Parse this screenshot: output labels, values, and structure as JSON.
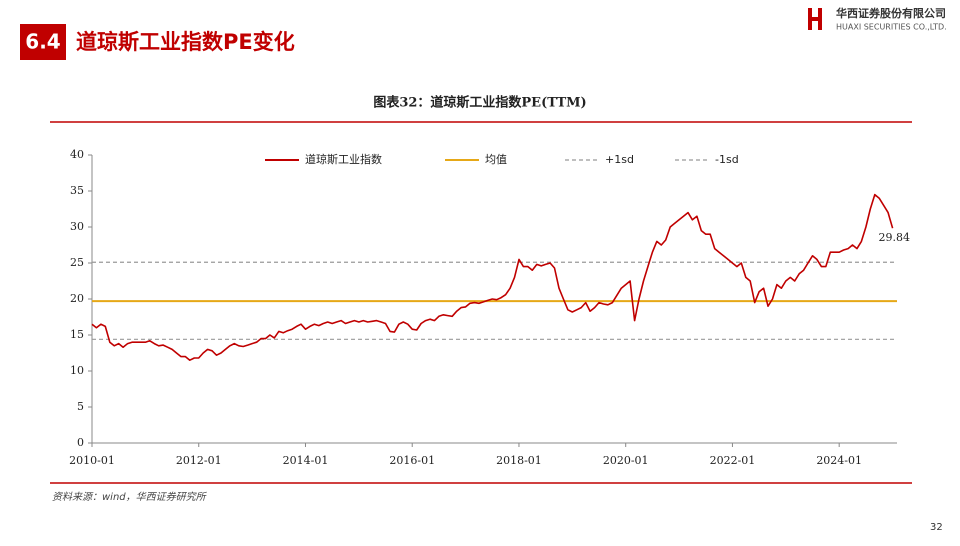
{
  "header": {
    "section": "6.4",
    "title": "道琼斯工业指数PE变化",
    "company_cn": "华西证券股份有限公司",
    "company_en": "HUAXI SECURITIES CO.,LTD."
  },
  "chart_data": {
    "type": "line",
    "title": "图表32：道琼斯工业指数PE(TTM)",
    "x": [
      "2010-01",
      "2010-02",
      "2010-03",
      "2010-04",
      "2010-05",
      "2010-06",
      "2010-07",
      "2010-08",
      "2010-09",
      "2010-10",
      "2010-11",
      "2010-12",
      "2011-01",
      "2011-02",
      "2011-03",
      "2011-04",
      "2011-05",
      "2011-06",
      "2011-07",
      "2011-08",
      "2011-09",
      "2011-10",
      "2011-11",
      "2011-12",
      "2012-01",
      "2012-02",
      "2012-03",
      "2012-04",
      "2012-05",
      "2012-06",
      "2012-07",
      "2012-08",
      "2012-09",
      "2012-10",
      "2012-11",
      "2012-12",
      "2013-01",
      "2013-02",
      "2013-03",
      "2013-04",
      "2013-05",
      "2013-06",
      "2013-07",
      "2013-08",
      "2013-09",
      "2013-10",
      "2013-11",
      "2013-12",
      "2014-01",
      "2014-02",
      "2014-03",
      "2014-04",
      "2014-05",
      "2014-06",
      "2014-07",
      "2014-08",
      "2014-09",
      "2014-10",
      "2014-11",
      "2014-12",
      "2015-01",
      "2015-02",
      "2015-03",
      "2015-04",
      "2015-05",
      "2015-06",
      "2015-07",
      "2015-08",
      "2015-09",
      "2015-10",
      "2015-11",
      "2015-12",
      "2016-01",
      "2016-02",
      "2016-03",
      "2016-04",
      "2016-05",
      "2016-06",
      "2016-07",
      "2016-08",
      "2016-09",
      "2016-10",
      "2016-11",
      "2016-12",
      "2017-01",
      "2017-02",
      "2017-03",
      "2017-04",
      "2017-05",
      "2017-06",
      "2017-07",
      "2017-08",
      "2017-09",
      "2017-10",
      "2017-11",
      "2017-12",
      "2018-01",
      "2018-02",
      "2018-03",
      "2018-04",
      "2018-05",
      "2018-06",
      "2018-07",
      "2018-08",
      "2018-09",
      "2018-10",
      "2018-11",
      "2018-12",
      "2019-01",
      "2019-02",
      "2019-03",
      "2019-04",
      "2019-05",
      "2019-06",
      "2019-07",
      "2019-08",
      "2019-09",
      "2019-10",
      "2019-11",
      "2019-12",
      "2020-01",
      "2020-02",
      "2020-03",
      "2020-04",
      "2020-05",
      "2020-06",
      "2020-07",
      "2020-08",
      "2020-09",
      "2020-10",
      "2020-11",
      "2020-12",
      "2021-01",
      "2021-02",
      "2021-03",
      "2021-04",
      "2021-05",
      "2021-06",
      "2021-07",
      "2021-08",
      "2021-09",
      "2021-10",
      "2021-11",
      "2021-12",
      "2022-01",
      "2022-02",
      "2022-03",
      "2022-04",
      "2022-05",
      "2022-06",
      "2022-07",
      "2022-08",
      "2022-09",
      "2022-10",
      "2022-11",
      "2022-12",
      "2023-01",
      "2023-02",
      "2023-03",
      "2023-04",
      "2023-05",
      "2023-06",
      "2023-07",
      "2023-08",
      "2023-09",
      "2023-10",
      "2023-11",
      "2023-12",
      "2024-01",
      "2024-02",
      "2024-03",
      "2024-04",
      "2024-05",
      "2024-06",
      "2024-07",
      "2024-08",
      "2024-09",
      "2024-10",
      "2024-11",
      "2024-12",
      "2025-01"
    ],
    "series": [
      {
        "name": "道琼斯工业指数",
        "color": "#c00000",
        "values": [
          16.5,
          16,
          16.5,
          16.2,
          14,
          13.5,
          13.8,
          13.3,
          13.8,
          14,
          14,
          14,
          14,
          14.2,
          13.8,
          13.5,
          13.6,
          13.3,
          13,
          12.5,
          12,
          12,
          11.5,
          11.8,
          11.8,
          12.5,
          13,
          12.8,
          12.2,
          12.5,
          13,
          13.5,
          13.8,
          13.5,
          13.4,
          13.6,
          13.8,
          14,
          14.5,
          14.5,
          15,
          14.6,
          15.5,
          15.3,
          15.6,
          15.8,
          16.2,
          16.5,
          15.8,
          16.2,
          16.5,
          16.3,
          16.6,
          16.8,
          16.6,
          16.8,
          17,
          16.6,
          16.8,
          17,
          16.8,
          17,
          16.8,
          16.9,
          17,
          16.8,
          16.6,
          15.5,
          15.4,
          16.5,
          16.8,
          16.5,
          15.8,
          15.7,
          16.6,
          17,
          17.2,
          17,
          17.6,
          17.8,
          17.7,
          17.6,
          18.3,
          18.8,
          18.9,
          19.4,
          19.5,
          19.4,
          19.6,
          19.8,
          20,
          19.9,
          20.2,
          20.6,
          21.5,
          23,
          25.5,
          24.5,
          24.5,
          24,
          24.8,
          24.6,
          24.8,
          25,
          24.3,
          21.5,
          20,
          18.5,
          18.2,
          18.5,
          18.8,
          19.5,
          18.3,
          18.8,
          19.5,
          19.3,
          19.2,
          19.5,
          20.5,
          21.5,
          22,
          22.5,
          17,
          20,
          22.5,
          24.5,
          26.5,
          28,
          27.5,
          28.2,
          30,
          30.5,
          31,
          31.5,
          32,
          31,
          31.5,
          29.5,
          29,
          29,
          27,
          26.5,
          26,
          25.5,
          25,
          24.5,
          25,
          23,
          22.5,
          19.5,
          21,
          21.5,
          19,
          20,
          22,
          21.5,
          22.5,
          23,
          22.5,
          23.5,
          24,
          25,
          26,
          25.5,
          24.5,
          24.5,
          26.5,
          26.5,
          26.5,
          26.8,
          27,
          27.5,
          27,
          28,
          30,
          32.5,
          34.5,
          34,
          33,
          32,
          29.84
        ]
      }
    ],
    "reference_lines": [
      {
        "name": "均值",
        "value": 19.7,
        "color": "#e6a817",
        "dashed": false
      },
      {
        "name": "+1sd",
        "value": 25.1,
        "color": "#999999",
        "dashed": true
      },
      {
        "name": "-1sd",
        "value": 14.4,
        "color": "#999999",
        "dashed": true
      }
    ],
    "xlim": [
      "2010-01",
      "2025-02"
    ],
    "xticks": [
      "2010-01",
      "2012-01",
      "2014-01",
      "2016-01",
      "2018-01",
      "2020-01",
      "2022-01",
      "2024-01"
    ],
    "ylim": [
      0,
      40
    ],
    "yticks": [
      0,
      5,
      10,
      15,
      20,
      25,
      30,
      35,
      40
    ],
    "grid": false
  },
  "footer": {
    "source": "资料来源：wind，华西证券研究所",
    "page": "32"
  }
}
